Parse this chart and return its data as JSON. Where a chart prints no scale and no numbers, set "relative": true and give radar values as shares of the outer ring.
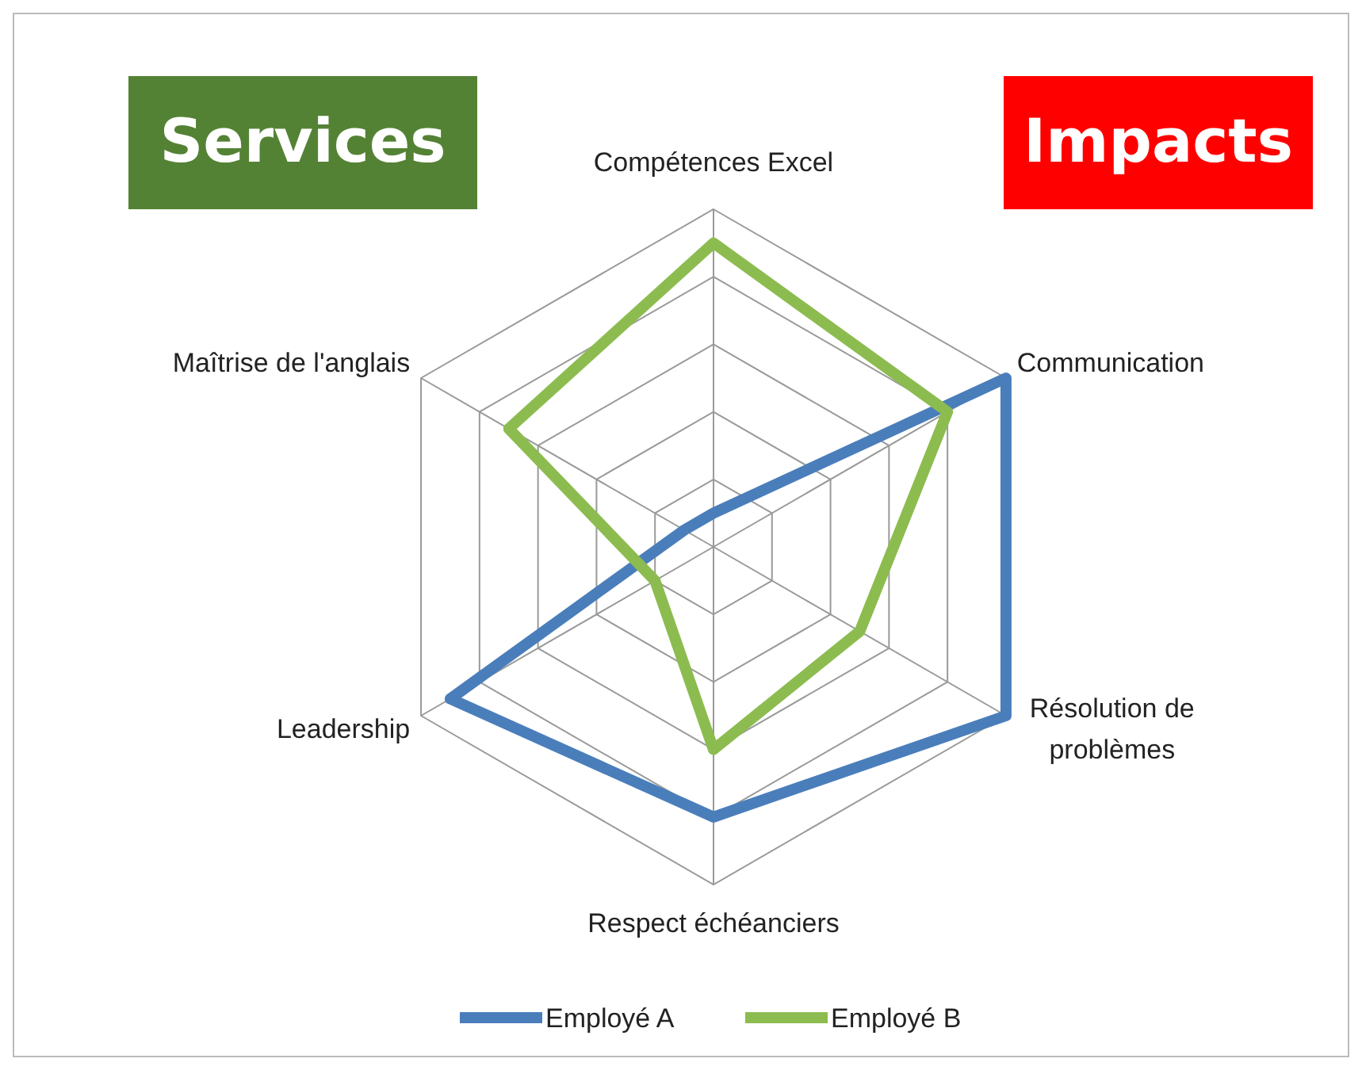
{
  "chart_data": {
    "type": "radar",
    "relative": true,
    "categories": [
      "Compétences Excel",
      "Communication",
      "Résolution de problèmes",
      "Respect échéanciers",
      "Leadership",
      "Maîtrise de l'anglais"
    ],
    "series": [
      {
        "name": "Employé A",
        "color": "#4a7ebb",
        "values": [
          0.1,
          1,
          1,
          0.8,
          0.9,
          0.1
        ]
      },
      {
        "name": "Employé B",
        "color": "#8cbc4f",
        "values": [
          0.9,
          0.8,
          0.5,
          0.6,
          0.2,
          0.7
        ]
      }
    ],
    "legend": "bottom",
    "annotations": [
      "Services",
      "Impacts"
    ]
  }
}
